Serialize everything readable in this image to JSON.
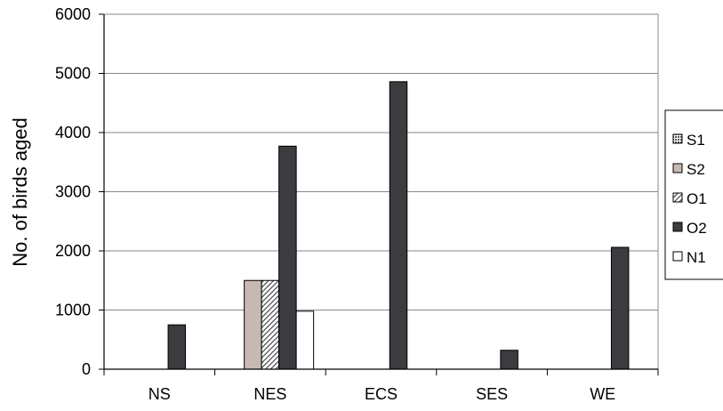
{
  "chart_data": {
    "type": "bar",
    "title": "",
    "xlabel": "",
    "ylabel": "No. of birds aged",
    "ylim": [
      0,
      6000
    ],
    "yticks": [
      0,
      1000,
      2000,
      3000,
      4000,
      5000,
      6000
    ],
    "categories": [
      "NS",
      "NES",
      "ECS",
      "SES",
      "WE"
    ],
    "grid": "horizontal",
    "legend_position": "right",
    "series": [
      {
        "name": "S1",
        "fill": "pattern-grid",
        "color": "#555555",
        "values": [
          0,
          0,
          0,
          0,
          0
        ]
      },
      {
        "name": "S2",
        "fill": "solid",
        "color": "#c7b9b2",
        "values": [
          0,
          1500,
          0,
          0,
          0
        ]
      },
      {
        "name": "O1",
        "fill": "pattern-diagonal",
        "color": "#3a3a3a",
        "values": [
          0,
          1500,
          0,
          0,
          0
        ]
      },
      {
        "name": "O2",
        "fill": "solid",
        "color": "#3b3b40",
        "values": [
          750,
          3770,
          4860,
          320,
          2060
        ]
      },
      {
        "name": "N1",
        "fill": "solid",
        "color": "#ffffff",
        "values": [
          0,
          980,
          0,
          0,
          0
        ]
      }
    ]
  }
}
